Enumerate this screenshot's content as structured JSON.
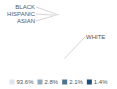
{
  "chart_data": {
    "type": "pie",
    "categories": [
      "WHITE",
      "ASIAN",
      "HISPANIC",
      "BLACK"
    ],
    "values": [
      93.6,
      2.8,
      2.1,
      1.4
    ],
    "value_labels": [
      "93.6%",
      "2.8%",
      "2.1%",
      "1.4%"
    ],
    "colors": [
      "#dce6f0",
      "#8eaabf",
      "#4f7490",
      "#1f4e79"
    ],
    "legend": "bottom"
  }
}
